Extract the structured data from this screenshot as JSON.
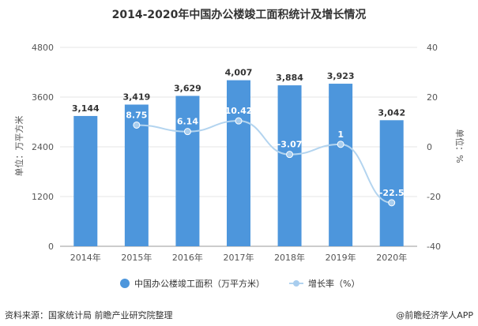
{
  "title": "2014-2020年中国办公楼竣工面积统计及增长情况",
  "chart_data": {
    "type": "bar",
    "categories": [
      "2014年",
      "2015年",
      "2016年",
      "2017年",
      "2018年",
      "2019年",
      "2020年"
    ],
    "series": [
      {
        "name": "中国办公楼竣工面积（万平方米）",
        "type": "bar",
        "axis": "left",
        "values": [
          3144,
          3419,
          3629,
          4007,
          3884,
          3923,
          3042
        ],
        "labels": [
          "3,144",
          "3,419",
          "3,629",
          "4,007",
          "3,884",
          "3,923",
          "3,042"
        ]
      },
      {
        "name": "增长率（%）",
        "type": "line",
        "axis": "right",
        "values": [
          null,
          8.75,
          6.14,
          10.42,
          -3.07,
          1,
          -22.5
        ],
        "labels": [
          "",
          "8.75",
          "6.14",
          "10.42",
          "-3.07",
          "1",
          "-22.5"
        ]
      }
    ],
    "ylabel": "单位：万平方米",
    "y2label": "单位：%",
    "ylim": [
      0,
      4800
    ],
    "y2lim": [
      -40,
      40
    ],
    "yticks": [
      "0",
      "1200",
      "2400",
      "3600",
      "4800"
    ],
    "y2ticks": [
      "-40",
      "-20",
      "0",
      "20",
      "40"
    ],
    "legend_position": "bottom",
    "colors": {
      "bar": "#4d96dc",
      "line": "#b3d4ef",
      "marker": "#a8cdee"
    }
  },
  "source": "资料来源：国家统计局 前瞻产业研究院整理",
  "credit": "@前瞻经济学人APP"
}
